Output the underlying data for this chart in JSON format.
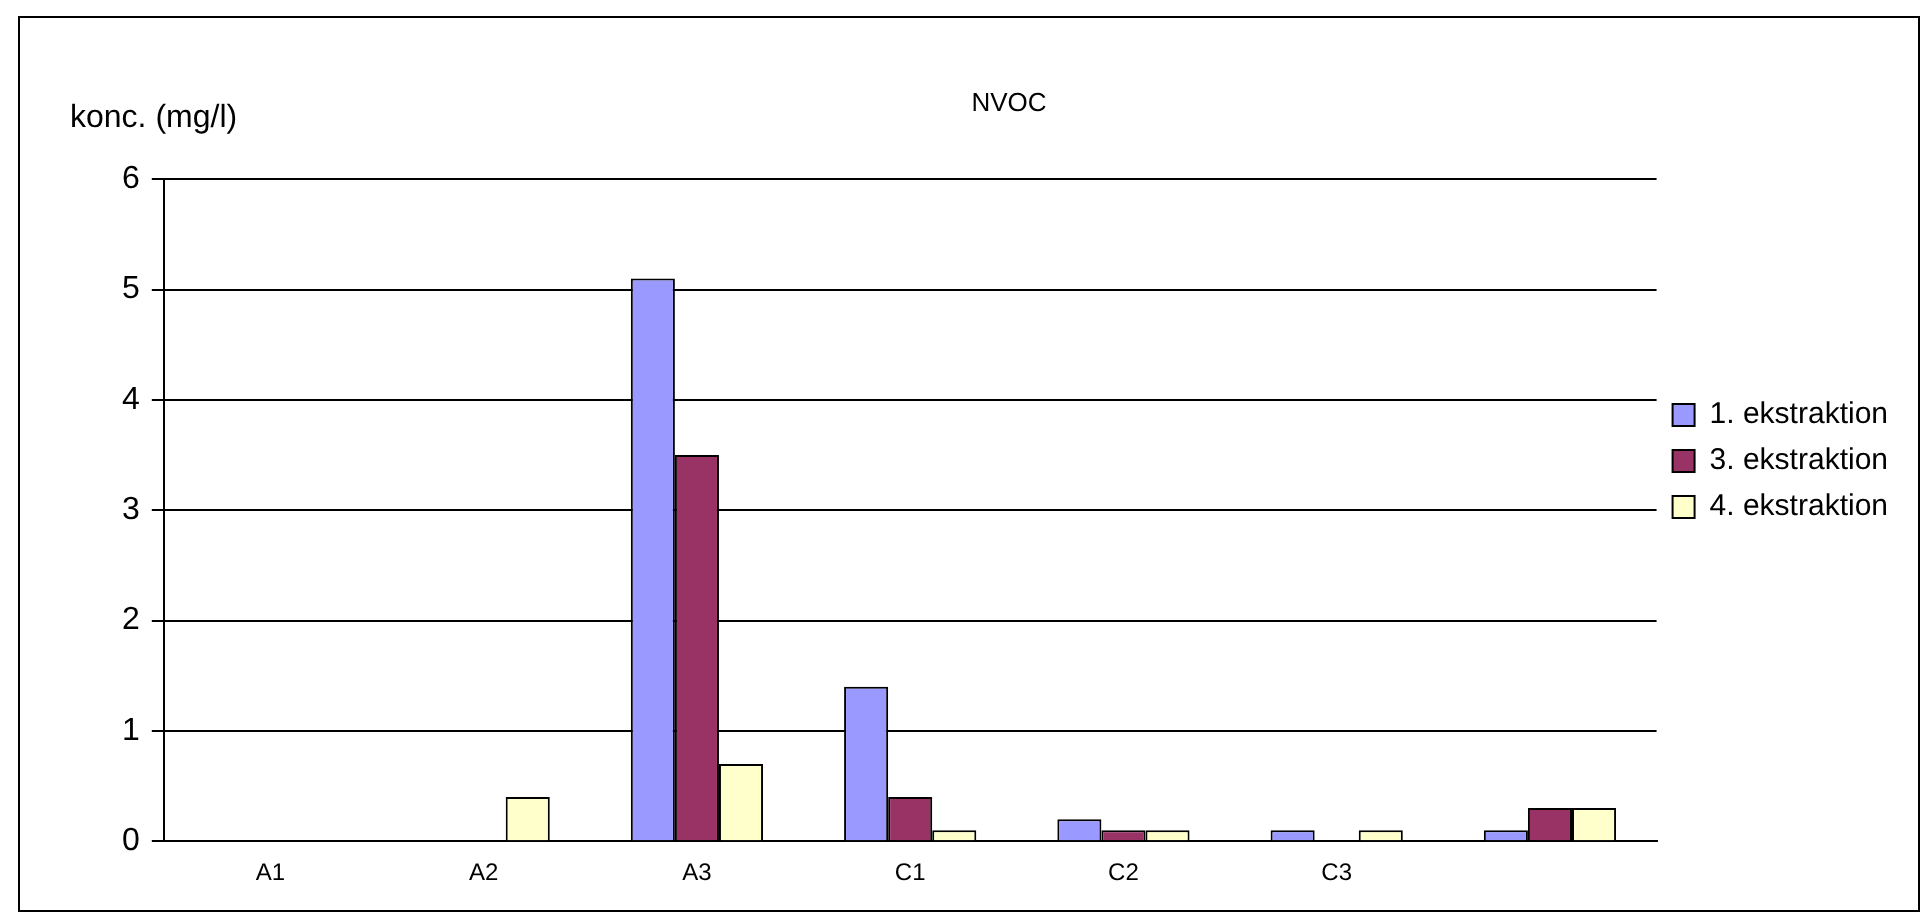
{
  "chart_data": {
    "type": "bar",
    "title": "NVOC",
    "ylabel": "konc. (mg/l)",
    "categories": [
      "A1",
      "A2",
      "A3",
      "C1",
      "C2",
      "C3",
      null
    ],
    "series": [
      {
        "name": "1. ekstraktion",
        "color": "#9999ff",
        "values": [
          0,
          0,
          5.1,
          1.4,
          0.2,
          0.1,
          0.1
        ]
      },
      {
        "name": "3. ekstraktion",
        "color": "#993366",
        "values": [
          0,
          0,
          3.5,
          0.4,
          0.1,
          0,
          0.3
        ]
      },
      {
        "name": "4. ekstraktion",
        "color": "#ffffcc",
        "values": [
          0,
          0.4,
          0.7,
          0.1,
          0.1,
          0.1,
          0.3
        ]
      }
    ],
    "ylim": [
      0,
      6
    ],
    "yticks": [
      0,
      1,
      2,
      3,
      4,
      5,
      6
    ],
    "grid": "y",
    "legend": "right"
  }
}
